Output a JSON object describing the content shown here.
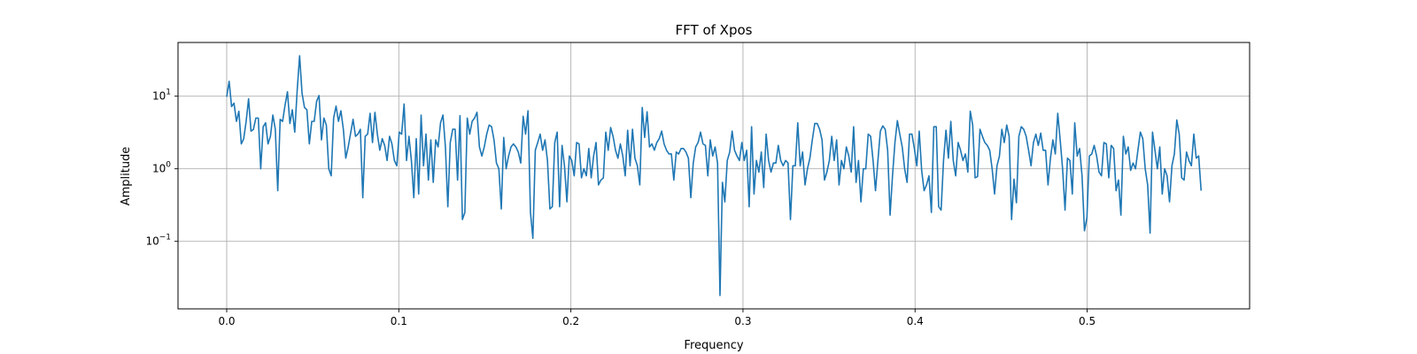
{
  "chart_data": {
    "type": "line",
    "title": "FFT of Xpos",
    "xlabel": "Frequency",
    "ylabel": "Amplitude",
    "xlim": [
      -0.0283,
      0.5944
    ],
    "ylim_log10": [
      -1.93,
      1.74
    ],
    "yscale": "log",
    "grid": true,
    "line_color": "#1f77b4",
    "x_ticks": [
      {
        "value": 0.0,
        "label": "0.0"
      },
      {
        "value": 0.1,
        "label": "0.1"
      },
      {
        "value": 0.2,
        "label": "0.2"
      },
      {
        "value": 0.3,
        "label": "0.3"
      },
      {
        "value": 0.4,
        "label": "0.4"
      },
      {
        "value": 0.5,
        "label": "0.5"
      }
    ],
    "y_ticks": [
      {
        "exp": 1,
        "base": "10",
        "sup": "1"
      },
      {
        "exp": 0,
        "base": "10",
        "sup": "0"
      },
      {
        "exp": -1,
        "base": "10",
        "sup": "−1"
      }
    ],
    "series": [
      {
        "x_start": 0.0,
        "x_step": 0.001412,
        "values": [
          9.8,
          16,
          7.2,
          8,
          4.5,
          6.2,
          2.2,
          2.6,
          4.5,
          9.2,
          3.3,
          3.5,
          5,
          5,
          1,
          3.8,
          4.3,
          2.2,
          2.8,
          5.5,
          3.5,
          0.5,
          4.8,
          4.5,
          7.5,
          11.5,
          4.2,
          6.5,
          3.2,
          12,
          36,
          11,
          7,
          6.5,
          2.2,
          4.5,
          4.5,
          8.5,
          10.2,
          2.5,
          5,
          4,
          1,
          0.8,
          5,
          7.3,
          4.5,
          6.3,
          3.5,
          1.4,
          2,
          3.1,
          4.8,
          2.8,
          3,
          3.5,
          0.4,
          2.8,
          3,
          5.8,
          2.3,
          6,
          3,
          1.8,
          2.6,
          2.1,
          1.3,
          2.8,
          2.2,
          1.3,
          1.1,
          3.2,
          3,
          7.8,
          1.3,
          2.8,
          1.3,
          0.4,
          2.6,
          0.45,
          5.5,
          1.1,
          3,
          0.7,
          2.5,
          0.65,
          2.5,
          2,
          4.3,
          5.5,
          2,
          0.3,
          2.3,
          3.5,
          3.5,
          0.7,
          5.4,
          0.2,
          0.25,
          5,
          3,
          4.5,
          5,
          6,
          2,
          1.5,
          2,
          3,
          4,
          3.8,
          2.5,
          1.2,
          1,
          0.28,
          2.7,
          1,
          1.5,
          2,
          2.2,
          2,
          1.7,
          1.2,
          5.3,
          3,
          6.3,
          0.25,
          0.11,
          1.8,
          2.3,
          3,
          1.8,
          2.5,
          1.3,
          0.28,
          0.3,
          2.3,
          3.2,
          0.3,
          2.1,
          1.1,
          0.35,
          1.5,
          1.3,
          0.8,
          2.3,
          2.2,
          0.75,
          1,
          0.8,
          1.9,
          0.75,
          1.5,
          2.3,
          0.6,
          0.7,
          0.75,
          3.2,
          1.8,
          3.7,
          2.8,
          1.8,
          1.4,
          2.2,
          1.5,
          0.8,
          3.4,
          1.1,
          3.5,
          1.4,
          1.1,
          0.6,
          7,
          2.7,
          6.1,
          2,
          2.2,
          1.8,
          2.3,
          2.6,
          3.3,
          2.2,
          1.8,
          1.6,
          1.6,
          0.7,
          1.7,
          1.6,
          1.9,
          1.9,
          1.7,
          1.4,
          0.4,
          1.2,
          2,
          2.3,
          3.2,
          2.2,
          2.1,
          0.8,
          2.5,
          1.5,
          2,
          1.2,
          0.018,
          0.65,
          0.35,
          1.3,
          1.7,
          3.3,
          1.8,
          1.5,
          1.3,
          2.3,
          1.3,
          1.8,
          0.3,
          3.8,
          0.45,
          1.3,
          0.9,
          1.7,
          0.55,
          3,
          1.3,
          0.9,
          1.2,
          1.2,
          2.1,
          1.3,
          1.1,
          1.3,
          1.2,
          0.2,
          1.1,
          1.1,
          4.3,
          1.1,
          1.7,
          0.6,
          1,
          1.4,
          2.5,
          4.2,
          4.2,
          3.5,
          2.5,
          0.7,
          0.9,
          1.3,
          2.8,
          1.3,
          2.5,
          0.6,
          1.3,
          1,
          2,
          1.5,
          0.9,
          3.8,
          0.65,
          1.3,
          0.35,
          1,
          1,
          3,
          2.8,
          1.3,
          0.5,
          1.3,
          3.3,
          3.9,
          3.5,
          1.8,
          0.23,
          0.8,
          2.3,
          4.6,
          3,
          2,
          1,
          0.65,
          3,
          3,
          1.9,
          1.1,
          3.3,
          0.95,
          0.5,
          0.6,
          0.8,
          0.25,
          3.8,
          3.8,
          0.3,
          0.27,
          1.3,
          3.4,
          1.4,
          4.5,
          1.3,
          0.8,
          2.3,
          1.8,
          1.3,
          1.6,
          0.9,
          6.2,
          4,
          0.75,
          0.78,
          3.5,
          2.8,
          2.3,
          2.1,
          1.8,
          1,
          0.45,
          1.1,
          1.5,
          3.5,
          2.3,
          4,
          2.8,
          0.2,
          0.72,
          0.34,
          2.8,
          3.8,
          3.5,
          2.8,
          1.8,
          1.1,
          2.3,
          3,
          2.1,
          3.1,
          1.8,
          1.8,
          0.6,
          1.4,
          2.5,
          1.6,
          5.8,
          2.5,
          1,
          0.27,
          1.4,
          1.3,
          0.45,
          4.3,
          1.5,
          1.9,
          0.8,
          0.14,
          0.21,
          1.5,
          1.6,
          2.1,
          1.5,
          0.9,
          0.8,
          2.3,
          2.2,
          0.75,
          2.1,
          1.9,
          0.5,
          0.7,
          0.23,
          2.8,
          1.6,
          2,
          0.95,
          1.2,
          1,
          1.8,
          3.2,
          2.6,
          1,
          0.6,
          0.13,
          3.2,
          1.8,
          1,
          2,
          0.45,
          1,
          0.8,
          0.35,
          1.1,
          1.6,
          4.7,
          3,
          0.75,
          0.7,
          1.7,
          1.3,
          1.1,
          3,
          1.4,
          1.5,
          0.5
        ]
      }
    ]
  }
}
